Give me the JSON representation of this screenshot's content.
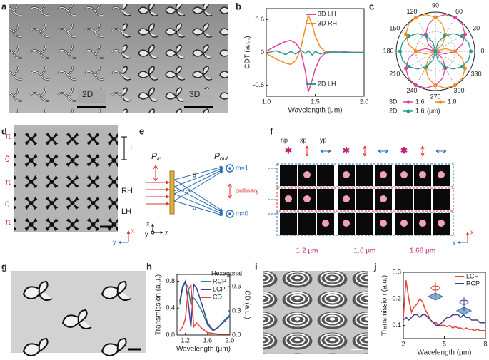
{
  "chart_data": [
    {
      "type": "line",
      "xlabel": "Wavelength (μm)",
      "ylabel": "CDT (a.u.)",
      "x": [
        1.0,
        1.1,
        1.2,
        1.25,
        1.3,
        1.35,
        1.4,
        1.43,
        1.47,
        1.5,
        1.55,
        1.6,
        1.7,
        1.8,
        1.9,
        2.0
      ],
      "xlim": [
        1.0,
        2.0
      ],
      "xticks": [
        {
          "value": 1,
          "label": "1.0"
        },
        1.5,
        {
          "value": 2,
          "label": "2.0"
        }
      ],
      "ylim": [
        -0.8,
        0.8
      ],
      "yticks": [
        -0.6,
        0,
        0.6
      ],
      "series": [
        {
          "name": "3D LH",
          "color": "#e0409a",
          "values": [
            0.02,
            0.12,
            0.2,
            0.22,
            0.17,
            0.05,
            -0.35,
            -0.72,
            -0.5,
            -0.3,
            -0.1,
            -0.02,
            0,
            0.01,
            0,
            0
          ]
        },
        {
          "name": "3D RH",
          "color": "#f08c1e",
          "values": [
            -0.02,
            -0.12,
            -0.2,
            -0.22,
            -0.15,
            0.05,
            0.45,
            0.68,
            0.5,
            0.3,
            0.1,
            0.02,
            0,
            -0.01,
            0,
            0
          ]
        },
        {
          "name": "2D LH",
          "color": "#2a9b92",
          "values": [
            -0.01,
            0.03,
            -0.04,
            0.02,
            -0.03,
            0.04,
            -0.02,
            0.03,
            -0.05,
            0.02,
            -0.03,
            0,
            0.01,
            0,
            0,
            0
          ]
        }
      ]
    },
    {
      "type": "polar",
      "rlim": [
        0,
        1
      ],
      "angle_ticks": [
        0,
        30,
        60,
        90,
        120,
        150,
        180,
        210,
        240,
        270,
        300,
        330
      ],
      "angles": [
        0,
        15,
        30,
        45,
        60,
        75,
        90,
        105,
        120,
        135,
        150,
        165,
        180,
        195,
        210,
        225,
        240,
        255,
        270,
        285,
        300,
        315,
        330,
        345
      ],
      "groups": [
        "3D:",
        "2D:"
      ],
      "unit": "(μm)",
      "series": [
        {
          "name": "1.6",
          "group": 0,
          "color": "#e0409a",
          "values": [
            0.5,
            0.71,
            0.87,
            0.97,
            1,
            0.97,
            0.87,
            0.71,
            0.5,
            0.26,
            0,
            0.26,
            0.5,
            0.71,
            0.87,
            0.97,
            1,
            0.97,
            0.87,
            0.71,
            0.5,
            0.26,
            0,
            0.26
          ]
        },
        {
          "name": "1.8",
          "group": 0,
          "color": "#f08c1e",
          "values": [
            0.5,
            0.26,
            0,
            0.26,
            0.5,
            0.71,
            0.87,
            0.97,
            1,
            0.97,
            0.87,
            0.71,
            0.5,
            0.26,
            0,
            0.26,
            0.5,
            0.71,
            0.87,
            0.97,
            1,
            0.97,
            0.87,
            0.71
          ]
        },
        {
          "name": "1.6",
          "group": 1,
          "color": "#2a9b92",
          "values": [
            0.9,
            0.87,
            0.78,
            0.64,
            0.45,
            0.23,
            0,
            0.23,
            0.45,
            0.64,
            0.78,
            0.87,
            0.9,
            0.87,
            0.78,
            0.64,
            0.45,
            0.23,
            0,
            0.23,
            0.45,
            0.64,
            0.78,
            0.87
          ]
        }
      ]
    },
    {
      "type": "line",
      "legend_title": "Hexagonal",
      "xlabel": "Wavelength (μm)",
      "ylabel": "Transmission (a.u.)",
      "y2label": "CD (a.u.)",
      "x": [
        1.1,
        1.15,
        1.2,
        1.25,
        1.3,
        1.35,
        1.4,
        1.5,
        1.6,
        1.7,
        1.8,
        1.9,
        2.0
      ],
      "xlim": [
        1.05,
        2.0
      ],
      "xticks": [
        1.2,
        1.6,
        {
          "value": 2,
          "label": "2.0"
        }
      ],
      "ylim": [
        0,
        0.9
      ],
      "yticks": [
        {
          "value": 0,
          "label": "0.0"
        },
        0.4,
        0.8
      ],
      "y2lim": [
        0,
        0.75
      ],
      "y2ticks": [
        {
          "value": 0,
          "label": "0.0"
        },
        0.3,
        0.6
      ],
      "series": [
        {
          "name": "RCP",
          "color": "#1a8c8c",
          "values": [
            0.45,
            0.7,
            0.78,
            0.7,
            0.45,
            0.55,
            0.5,
            0.35,
            0.15,
            0.06,
            0.12,
            0.22,
            0.3
          ]
        },
        {
          "name": "LCP",
          "color": "#4a3a8f",
          "values": [
            0.5,
            0.72,
            0.8,
            0.5,
            0.12,
            0.75,
            0.7,
            0.45,
            0.18,
            0.07,
            0.12,
            0.2,
            0.28
          ]
        },
        {
          "name": "CD",
          "color": "#e8403a",
          "axis": "y2",
          "values": [
            0.05,
            0.1,
            0.2,
            0.55,
            0.62,
            0.1,
            0.15,
            0.08,
            0.03,
            0.02,
            0.01,
            0.01,
            0.01
          ]
        }
      ]
    },
    {
      "type": "line",
      "xlabel": "Wavelength (μm)",
      "ylabel": "Transmission (a.u.)",
      "x": [
        2.0,
        2.2,
        2.4,
        2.6,
        2.8,
        3.0,
        3.2,
        3.4,
        3.6,
        3.8,
        4.0,
        4.2,
        4.4,
        4.6,
        4.8,
        5.0,
        5.2,
        5.4,
        5.6,
        5.8,
        6.0,
        6.2,
        6.4,
        6.6,
        6.8,
        7.0,
        7.2,
        7.4,
        7.6,
        7.8,
        8.0
      ],
      "xlim": [
        2,
        8
      ],
      "xticks": [
        2,
        5,
        8
      ],
      "ylim": [
        0.05,
        0.3
      ],
      "yticks": [
        0.1,
        0.2,
        0.3
      ],
      "series": [
        {
          "name": "LCP",
          "color": "#e8403a",
          "values": [
            0.13,
            0.27,
            0.2,
            0.15,
            0.17,
            0.18,
            0.2,
            0.19,
            0.16,
            0.14,
            0.12,
            0.11,
            0.11,
            0.1,
            0.1,
            0.1,
            0.095,
            0.1,
            0.09,
            0.095,
            0.09,
            0.09,
            0.085,
            0.09,
            0.085,
            0.085,
            0.08,
            0.085,
            0.08,
            0.08,
            0.08
          ]
        },
        {
          "name": "RCP",
          "color": "#4a3a8f",
          "values": [
            0.12,
            0.13,
            0.12,
            0.13,
            0.14,
            0.14,
            0.13,
            0.14,
            0.14,
            0.13,
            0.12,
            0.11,
            0.1,
            0.1,
            0.11,
            0.12,
            0.13,
            0.13,
            0.14,
            0.14,
            0.14,
            0.13,
            0.14,
            0.13,
            0.13,
            0.12,
            0.12,
            0.12,
            0.11,
            0.11,
            0.11
          ]
        }
      ]
    }
  ],
  "panels": {
    "letters": [
      "a",
      "b",
      "c",
      "d",
      "e",
      "f",
      "g",
      "h",
      "i",
      "j"
    ],
    "a": {
      "labels": [
        "2D",
        "3D"
      ]
    },
    "d": {
      "phases": [
        "π",
        "0",
        "π",
        "0",
        "π"
      ],
      "labels": [
        "L",
        "RH",
        "LH"
      ],
      "axes": [
        "x",
        "y"
      ]
    },
    "e": {
      "p_in": [
        "P",
        "in"
      ],
      "p_out": [
        "P",
        "out"
      ],
      "orders": [
        "m=1",
        "ordinary",
        "m=0"
      ],
      "angles": [
        "α",
        "α"
      ],
      "axes": [
        "x",
        "y",
        "z"
      ]
    },
    "f": {
      "modes": [
        "np",
        "xp",
        "yp"
      ],
      "wavelengths": [
        "1.2 μm",
        "1.6 μm",
        "1.68 μm"
      ],
      "axes": [
        "x",
        "y"
      ]
    }
  }
}
